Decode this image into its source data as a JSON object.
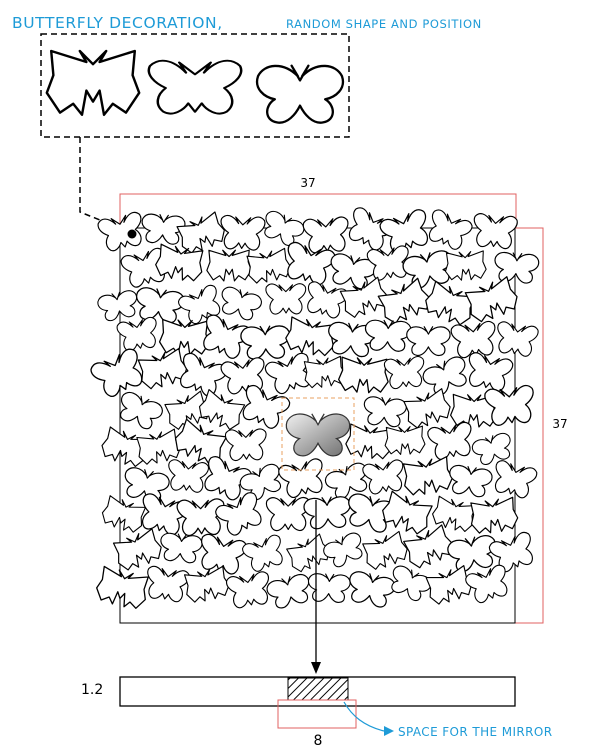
{
  "title": {
    "main": "BUTTERFLY DECORATION,",
    "sub": "RANDOM SHAPE AND POSITION",
    "color": "#1e9bd7"
  },
  "dimensions": {
    "width": "37",
    "height": "37",
    "thickness": "1.2",
    "mirror_width": "8",
    "line_color": "#e06060"
  },
  "callout": {
    "mirror": "SPACE FOR THE MIRROR"
  },
  "icons": {
    "sample_shapes": [
      "butterfly-w-icon",
      "butterfly-m-icon",
      "butterfly-round-icon"
    ],
    "leader_dot": "leader-dot-icon",
    "arrow": "arrow-down-icon"
  }
}
